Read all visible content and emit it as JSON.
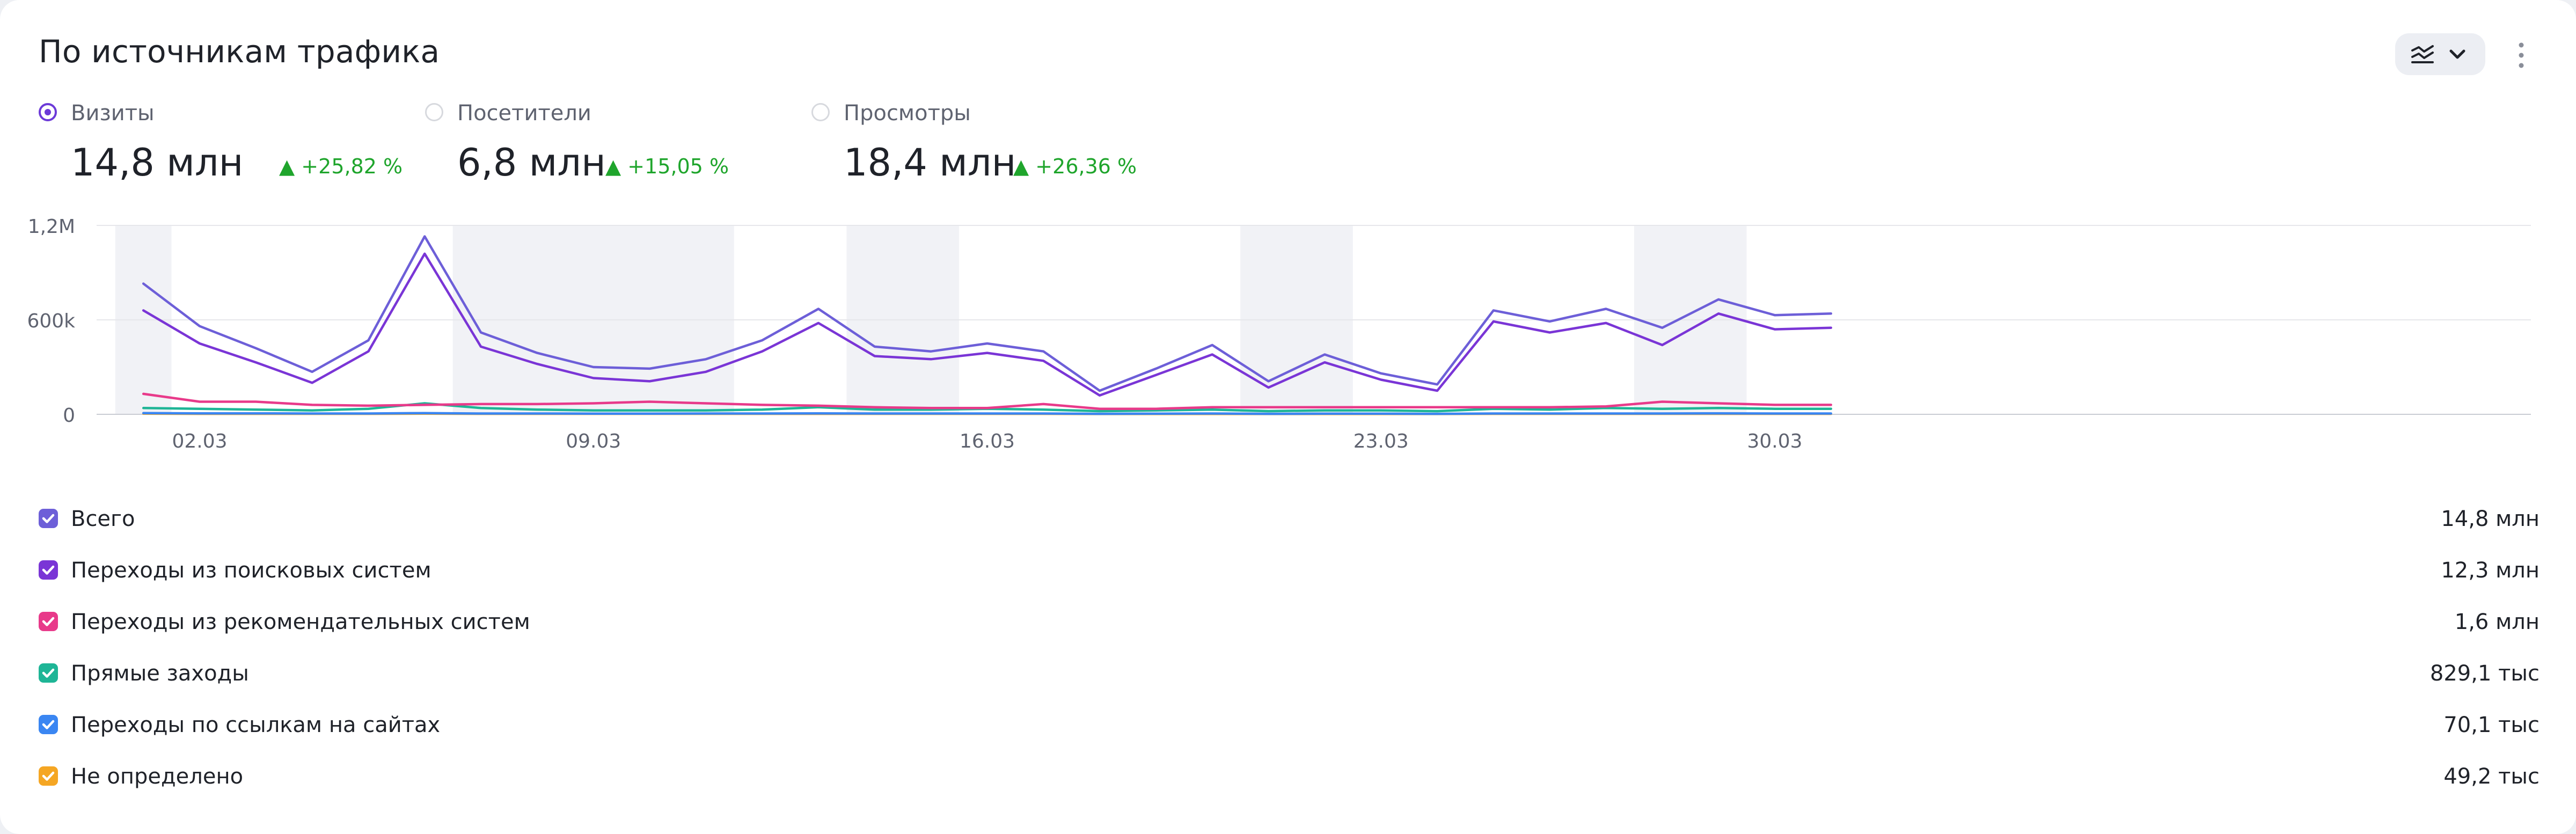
{
  "card": {
    "title": "По источникам трафика"
  },
  "metrics": [
    {
      "label": "Визиты",
      "value": "14,8 млн",
      "delta": "▲ +25,82 %",
      "selected": true
    },
    {
      "label": "Посетители",
      "value": "6,8 млн",
      "delta": "▲ +15,05 %",
      "selected": false
    },
    {
      "label": "Просмотры",
      "value": "18,4 млн",
      "delta": "▲ +26,36 %",
      "selected": false
    }
  ],
  "colors": {
    "accent": "#6c3ad8",
    "positive": "#1fa52c",
    "weekend_band": "#f1f2f6",
    "grid": "#e6e7eb"
  },
  "icons": {
    "chart_toggle": "line-chart-icon",
    "chart_toggle_arrow": "chevron-down-icon",
    "more": "more-vertical-icon",
    "checkbox": "checkmark-icon"
  },
  "chart_data": {
    "type": "line",
    "x": [
      "01.03",
      "02.03",
      "03.03",
      "04.03",
      "05.03",
      "06.03",
      "07.03",
      "08.03",
      "09.03",
      "10.03",
      "11.03",
      "12.03",
      "13.03",
      "14.03",
      "15.03",
      "16.03",
      "17.03",
      "18.03",
      "19.03",
      "20.03",
      "21.03",
      "22.03",
      "23.03",
      "24.03",
      "25.03",
      "26.03",
      "27.03",
      "28.03",
      "29.03",
      "30.03",
      "31.03"
    ],
    "x_tick_labels": [
      "02.03",
      "09.03",
      "16.03",
      "23.03",
      "30.03"
    ],
    "y_tick_labels": [
      "0",
      "600k",
      "1,2M"
    ],
    "ylim": [
      0,
      1200000
    ],
    "grid": true,
    "weekend_bands": [
      [
        "01.03",
        "01.03"
      ],
      [
        "07.03",
        "11.03"
      ],
      [
        "14.03",
        "15.03"
      ],
      [
        "21.03",
        "22.03"
      ],
      [
        "28.03",
        "29.03"
      ]
    ],
    "series": [
      {
        "name": "Всего",
        "total": "14,8 млн",
        "color": "#6d5fd8",
        "values": [
          830000,
          560000,
          420000,
          270000,
          470000,
          1130000,
          520000,
          390000,
          300000,
          290000,
          350000,
          470000,
          670000,
          430000,
          400000,
          450000,
          400000,
          150000,
          290000,
          440000,
          210000,
          380000,
          260000,
          190000,
          660000,
          590000,
          670000,
          550000,
          730000,
          630000,
          640000
        ]
      },
      {
        "name": "Переходы из поисковых систем",
        "total": "12,3 млн",
        "color": "#7a35d6",
        "values": [
          660000,
          450000,
          330000,
          200000,
          400000,
          1020000,
          430000,
          320000,
          230000,
          210000,
          270000,
          400000,
          580000,
          370000,
          350000,
          390000,
          340000,
          120000,
          250000,
          380000,
          170000,
          330000,
          220000,
          150000,
          590000,
          520000,
          580000,
          440000,
          640000,
          540000,
          550000
        ]
      },
      {
        "name": "Переходы из рекомендательных систем",
        "total": "1,6 млн",
        "color": "#e83a8a",
        "values": [
          130000,
          80000,
          80000,
          60000,
          55000,
          60000,
          65000,
          65000,
          70000,
          80000,
          70000,
          60000,
          55000,
          45000,
          40000,
          40000,
          65000,
          35000,
          35000,
          45000,
          45000,
          45000,
          45000,
          45000,
          45000,
          45000,
          50000,
          80000,
          70000,
          60000,
          60000
        ]
      },
      {
        "name": "Прямые заходы",
        "total": "829,1 тыс",
        "color": "#1eb596",
        "values": [
          40000,
          35000,
          30000,
          25000,
          35000,
          70000,
          40000,
          30000,
          25000,
          25000,
          25000,
          30000,
          45000,
          30000,
          30000,
          35000,
          30000,
          20000,
          25000,
          30000,
          20000,
          25000,
          25000,
          20000,
          35000,
          30000,
          40000,
          35000,
          40000,
          35000,
          35000
        ]
      },
      {
        "name": "Переходы по ссылкам на сайтах",
        "total": "70,1 тыс",
        "color": "#3a86f2",
        "values": [
          8000,
          6000,
          6000,
          5000,
          5000,
          8000,
          5000,
          5000,
          4000,
          4000,
          5000,
          5000,
          6000,
          5000,
          5000,
          5000,
          5000,
          3000,
          4000,
          5000,
          3000,
          4000,
          4000,
          3000,
          5000,
          5000,
          5000,
          5000,
          6000,
          5000,
          5000
        ]
      },
      {
        "name": "Не определено",
        "total": "49,2 тыс",
        "color": "#f5a623",
        "values": [
          4000,
          3000,
          3000,
          3000,
          3000,
          4000,
          3000,
          3000,
          3000,
          3000,
          3000,
          3000,
          3000,
          3000,
          3000,
          3000,
          3000,
          2000,
          2000,
          2000,
          2000,
          2000,
          2000,
          2000,
          3000,
          3000,
          3000,
          3000,
          3000,
          3000,
          3000
        ]
      }
    ]
  }
}
